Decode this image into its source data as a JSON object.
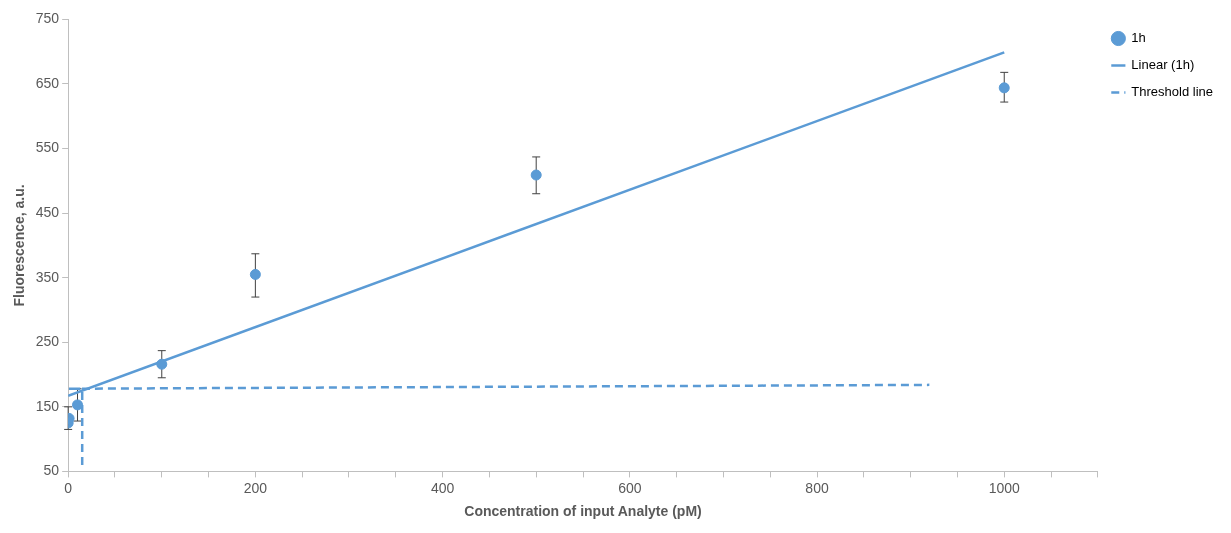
{
  "chart_data": {
    "type": "scatter",
    "xlabel": "Concentration of input Analyte (pM)",
    "ylabel": "Fluorescence, a.u.",
    "xlim": [
      0,
      1100
    ],
    "xticks": [
      0,
      {
        "value": 50,
        "label": null
      },
      {
        "value": 100,
        "label": null
      },
      {
        "value": 150,
        "label": null
      },
      200,
      {
        "value": 250,
        "label": null
      },
      {
        "value": 300,
        "label": null
      },
      {
        "value": 350,
        "label": null
      },
      400,
      {
        "value": 450,
        "label": null
      },
      {
        "value": 500,
        "label": null
      },
      {
        "value": 550,
        "label": null
      },
      600,
      {
        "value": 650,
        "label": null
      },
      {
        "value": 700,
        "label": null
      },
      {
        "value": 750,
        "label": null
      },
      800,
      {
        "value": 850,
        "label": null
      },
      {
        "value": 900,
        "label": null
      },
      {
        "value": 950,
        "label": null
      },
      1000,
      {
        "value": 1050,
        "label": null
      },
      {
        "value": 1100,
        "label": null
      }
    ],
    "ylim": [
      50,
      750
    ],
    "yticks": [
      50,
      150,
      250,
      350,
      450,
      550,
      650,
      750
    ],
    "grid": false,
    "legend": "top right",
    "series": [
      {
        "name": "1h",
        "type": "scatter",
        "color": "#5b9bd5",
        "marker": "circle",
        "x": [
          0,
          1,
          10,
          100,
          200,
          500,
          1000
        ],
        "values": [
          125,
          132,
          153,
          216,
          355,
          509,
          644
        ],
        "errors": [
          [
            115,
            150
          ],
          null,
          [
            128,
            178
          ],
          [
            195,
            237
          ],
          [
            320,
            387
          ],
          [
            480,
            537
          ],
          [
            622,
            668
          ]
        ]
      },
      {
        "name": "Linear (1h)",
        "type": "line",
        "color": "#5b9bd5",
        "marker": "none",
        "line_style": "solid",
        "x": [
          0,
          1000
        ],
        "values": [
          167,
          699
        ]
      },
      {
        "name": "Threshold line",
        "type": "line",
        "color": "#5b9bd5",
        "marker": "none",
        "line_style": "dashed",
        "x": [
          15,
          15,
          0,
          920
        ],
        "values": [
          60,
          178,
          178,
          184
        ]
      }
    ]
  }
}
